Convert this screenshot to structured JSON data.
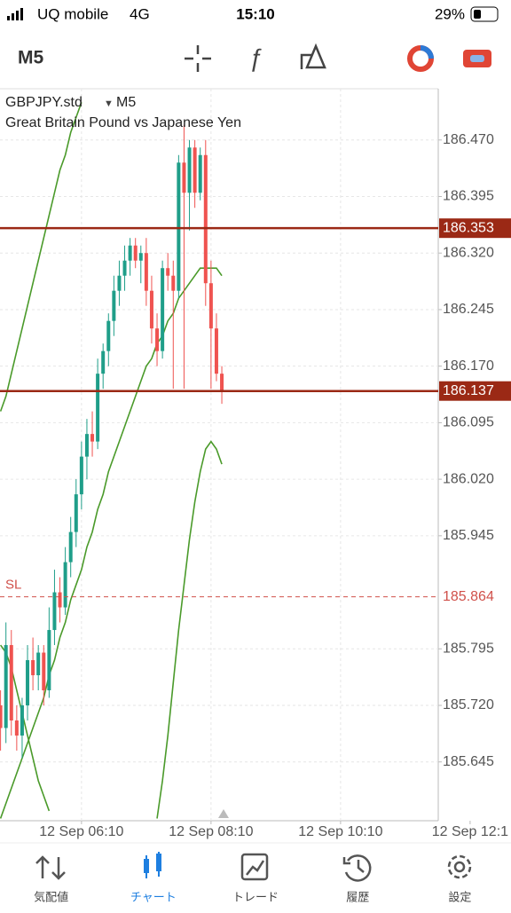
{
  "status_bar": {
    "carrier": "UQ mobile",
    "network": "4G",
    "time": "15:10",
    "battery": "29%"
  },
  "toolbar": {
    "timeframe": "M5"
  },
  "chart_data": {
    "type": "candlestick",
    "title": "GBPJPY.std",
    "timeframe": "M5",
    "subtitle": "Great Britain Pound vs Japanese Yen",
    "x": [
      3,
      4,
      5,
      6,
      7,
      8,
      9,
      10,
      11,
      12,
      13,
      14,
      15,
      16,
      17,
      18,
      19,
      20,
      21,
      22,
      23,
      24,
      25,
      26,
      27,
      28,
      29,
      30,
      31,
      32,
      33,
      34,
      35,
      36,
      37,
      38,
      39,
      40,
      41,
      42,
      43,
      44
    ],
    "open": [
      185.72,
      185.69,
      185.8,
      185.7,
      185.68,
      185.72,
      185.78,
      185.76,
      185.79,
      185.74,
      185.82,
      185.87,
      185.85,
      185.91,
      185.95,
      186.0,
      186.05,
      186.08,
      186.07,
      186.16,
      186.19,
      186.23,
      186.27,
      186.29,
      186.31,
      186.33,
      186.31,
      186.32,
      186.27,
      186.22,
      186.19,
      186.3,
      186.29,
      186.27,
      186.44,
      186.4,
      186.46,
      186.4,
      186.45,
      186.28,
      186.22,
      186.16
    ],
    "high": [
      185.74,
      185.83,
      185.82,
      185.72,
      185.73,
      185.8,
      185.81,
      185.8,
      185.8,
      185.85,
      185.9,
      185.89,
      185.93,
      185.97,
      186.02,
      186.07,
      186.1,
      186.11,
      186.18,
      186.2,
      186.24,
      186.29,
      186.31,
      186.33,
      186.34,
      186.34,
      186.33,
      186.34,
      186.29,
      186.24,
      186.31,
      186.32,
      186.31,
      186.45,
      186.49,
      186.47,
      186.47,
      186.46,
      186.47,
      186.31,
      186.24,
      186.17
    ],
    "low": [
      185.66,
      185.67,
      185.68,
      185.66,
      185.65,
      185.7,
      185.74,
      185.74,
      185.72,
      185.73,
      185.8,
      185.83,
      185.84,
      185.89,
      185.93,
      185.98,
      186.02,
      186.05,
      186.06,
      186.14,
      186.17,
      186.21,
      186.25,
      186.27,
      186.29,
      186.3,
      186.28,
      186.25,
      186.2,
      186.17,
      186.18,
      186.27,
      186.14,
      186.26,
      186.14,
      186.35,
      186.38,
      186.39,
      186.25,
      186.14,
      186.15,
      186.12
    ],
    "close": [
      185.69,
      185.8,
      185.7,
      185.68,
      185.72,
      185.78,
      185.76,
      185.79,
      185.74,
      185.82,
      185.87,
      185.85,
      185.91,
      185.95,
      186.0,
      186.05,
      186.08,
      186.07,
      186.16,
      186.19,
      186.23,
      186.27,
      186.29,
      186.31,
      186.33,
      186.31,
      186.32,
      186.27,
      186.22,
      186.19,
      186.3,
      186.29,
      186.27,
      186.44,
      186.4,
      186.46,
      186.4,
      186.45,
      186.28,
      186.22,
      186.16,
      186.137
    ],
    "up_color": "#1f9e89",
    "down_color": "#ef5350",
    "indicator_lines": [
      {
        "color": "#4a9a2a",
        "values": [
          185.57,
          185.59,
          185.61,
          185.63,
          185.65,
          185.67,
          185.69,
          185.71,
          185.73,
          185.76,
          185.78,
          185.81,
          185.83,
          185.86,
          185.88,
          185.9,
          185.93,
          185.95,
          185.98,
          186.0,
          186.03,
          186.05,
          186.07,
          186.09,
          186.11,
          186.13,
          186.15,
          186.17,
          186.18,
          186.2,
          186.21,
          186.23,
          186.24,
          186.26,
          186.27,
          186.28,
          186.29,
          186.3,
          186.3,
          186.3,
          186.3,
          186.29
        ]
      },
      {
        "color": "#4a9a2a",
        "values": [
          186.11,
          186.13,
          186.16,
          186.19,
          186.22,
          186.25,
          186.28,
          186.31,
          186.34,
          186.37,
          186.4,
          186.43,
          186.45,
          186.48,
          186.5,
          186.52,
          null,
          null,
          null,
          null,
          null,
          null,
          null,
          null,
          null,
          null,
          null,
          null,
          null,
          null,
          null,
          null,
          null,
          null,
          null,
          null,
          null,
          null,
          null,
          null,
          null,
          null
        ]
      },
      {
        "color": "#4a9a2a",
        "values": [
          185.8,
          185.79,
          185.77,
          185.74,
          185.71,
          185.68,
          185.65,
          185.62,
          185.6,
          185.58,
          null,
          null,
          null,
          null,
          null,
          null,
          null,
          null,
          null,
          null,
          null,
          null,
          null,
          null,
          null,
          null,
          null,
          null,
          null,
          185.57,
          185.62,
          185.68,
          185.75,
          185.82,
          185.88,
          185.94,
          185.99,
          186.03,
          186.06,
          186.07,
          186.06,
          186.04
        ]
      }
    ],
    "price_lines": [
      {
        "value": 186.353,
        "color": "#9b2915"
      },
      {
        "value": 186.137,
        "color": "#9b2915"
      },
      {
        "value": 185.864,
        "color": "#d0504a",
        "name": "SL"
      }
    ],
    "ylim": [
      185.567,
      186.538
    ],
    "yticks": [
      {
        "value": 186.47,
        "label": "186.470"
      },
      {
        "value": 186.395,
        "label": "186.395"
      },
      {
        "value": 186.32,
        "label": "186.320"
      },
      {
        "value": 186.245,
        "label": "186.245"
      },
      {
        "value": 186.17,
        "label": "186.170"
      },
      {
        "value": 186.095,
        "label": "186.095"
      },
      {
        "value": 186.02,
        "label": "186.020"
      },
      {
        "value": 185.945,
        "label": "185.945"
      },
      {
        "value": 185.795,
        "label": "185.795"
      },
      {
        "value": 185.72,
        "label": "185.720"
      },
      {
        "value": 185.645,
        "label": "185.645"
      }
    ],
    "xlim": [
      2.9,
      84.1
    ],
    "xticks": [
      {
        "value": 18,
        "label": "12 Sep 06:10"
      },
      {
        "value": 42,
        "label": "12 Sep 08:10"
      },
      {
        "value": 66,
        "label": "12 Sep 10:10"
      },
      {
        "value": 90,
        "label": "12 Sep 12:1"
      }
    ],
    "grid": true
  },
  "tabs": [
    {
      "label": "気配値"
    },
    {
      "label": "チャート",
      "active": true
    },
    {
      "label": "トレード"
    },
    {
      "label": "履歴"
    },
    {
      "label": "設定"
    }
  ]
}
